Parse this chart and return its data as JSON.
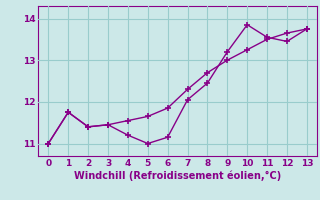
{
  "xlabel": "Windchill (Refroidissement éolien,°C)",
  "background_color": "#cce8e8",
  "grid_color": "#99cccc",
  "line_color": "#880088",
  "xlim": [
    -0.5,
    13.5
  ],
  "ylim": [
    10.7,
    14.3
  ],
  "yticks": [
    11,
    12,
    13,
    14
  ],
  "xticks": [
    0,
    1,
    2,
    3,
    4,
    5,
    6,
    7,
    8,
    9,
    10,
    11,
    12,
    13
  ],
  "line1_x": [
    0,
    1,
    2,
    3,
    4,
    5,
    6,
    7,
    8,
    9,
    10,
    11,
    12,
    13
  ],
  "line1_y": [
    11.0,
    11.75,
    11.4,
    11.45,
    11.2,
    11.0,
    11.15,
    12.05,
    12.45,
    13.2,
    13.85,
    13.55,
    13.45,
    13.75
  ],
  "line2_x": [
    0,
    1,
    2,
    3,
    4,
    5,
    6,
    7,
    8,
    9,
    10,
    11,
    12,
    13
  ],
  "line2_y": [
    11.0,
    11.75,
    11.4,
    11.45,
    11.55,
    11.65,
    11.85,
    12.3,
    12.7,
    13.0,
    13.25,
    13.5,
    13.65,
    13.75
  ],
  "marker": "+"
}
